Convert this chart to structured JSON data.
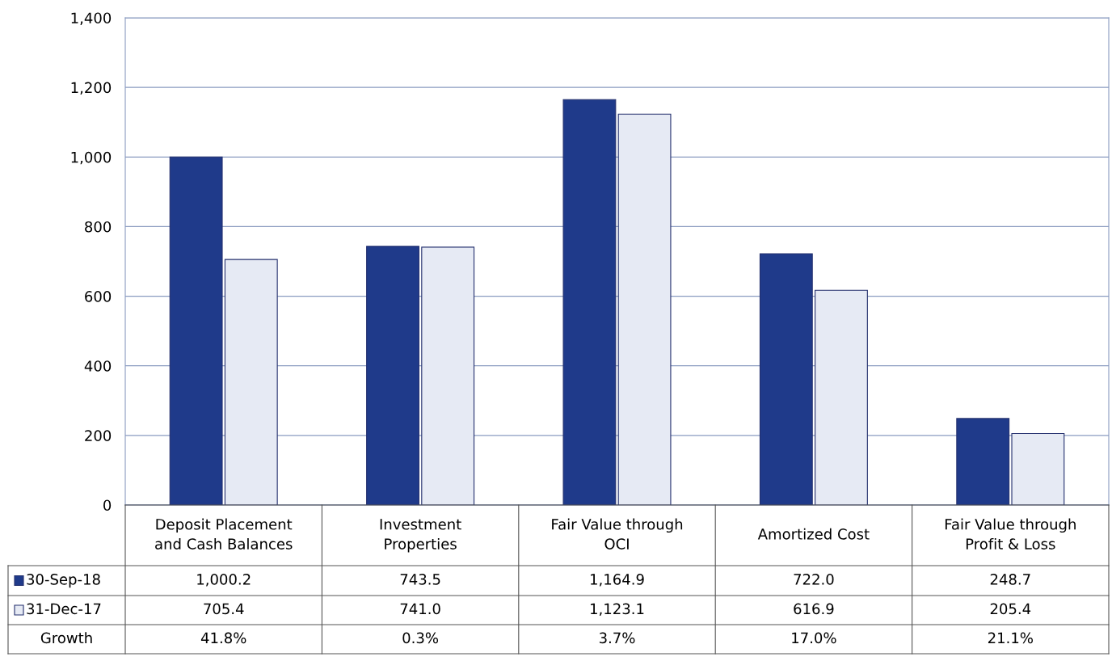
{
  "chart_data": {
    "type": "bar",
    "categories": [
      "Deposit Placement\nand Cash Balances",
      "Investment\nProperties",
      "Fair Value through\nOCI",
      "Amortized Cost",
      "Fair Value through\nProfit & Loss"
    ],
    "series": [
      {
        "name": "30-Sep-18",
        "color": "#1f3a8a",
        "values": [
          1000.2,
          743.5,
          1164.9,
          722.0,
          248.7
        ],
        "value_labels": [
          "1,000.2",
          "743.5",
          "1,164.9",
          "722.0",
          "248.7"
        ]
      },
      {
        "name": "31-Dec-17",
        "color": "#e6eaf4",
        "values": [
          705.4,
          741.0,
          1123.1,
          616.9,
          205.4
        ],
        "value_labels": [
          "705.4",
          "741.0",
          "1,123.1",
          "616.9",
          "205.4"
        ]
      }
    ],
    "ylim": [
      0,
      1400
    ],
    "yticks": [
      {
        "value": 0,
        "label": "0"
      },
      {
        "value": 200,
        "label": "200"
      },
      {
        "value": 400,
        "label": "400"
      },
      {
        "value": 600,
        "label": "600"
      },
      {
        "value": 800,
        "label": "800"
      },
      {
        "value": 1000,
        "label": "1,000"
      },
      {
        "value": 1200,
        "label": "1,200"
      },
      {
        "value": 1400,
        "label": "1,400"
      }
    ],
    "grid": "y",
    "legend": "bottom left",
    "annotations": [
      "Growth",
      "41.8%",
      "0.3%",
      "3.7%",
      "17.0%",
      "21.1%"
    ]
  }
}
